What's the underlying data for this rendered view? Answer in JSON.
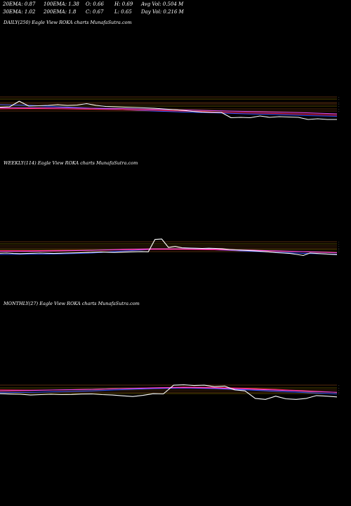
{
  "header": {
    "ema20": "20EMA: 0.87",
    "ema100": "100EMA: 1.38",
    "open": "O: 0.66",
    "high": "H: 0.69",
    "avg_vol": "Avg Vol: 0.504  M",
    "ema30": "30EMA: 1.02",
    "ema200": "200EMA: 1.8",
    "close": "C: 0.67",
    "low": "L: 0.65",
    "day_vol": "Day Vol: 0.216  M"
  },
  "panels": [
    {
      "title": "DAILY(250) Eagle   View  ROKA charts MunafaSutra.com"
    },
    {
      "title": "WEEKLY(114) Eagle   View  ROKA charts MunafaSutra.com"
    },
    {
      "title": "MONTHLY(27) Eagle   View  ROKA charts MunafaSutra.com"
    }
  ],
  "colors": {
    "background": "#000000",
    "price": "#ffffff",
    "ema_blue": "#3355ff",
    "ema_red": "#ff2255",
    "ema_magenta": "#ff55ff",
    "ema_cyan": "#44ddff",
    "level_orange": "#cc6622",
    "level_yellow": "#ccaa00"
  },
  "chart_data": [
    {
      "type": "line",
      "timeframe": "DAILY",
      "bars": 250,
      "price_series": [
        0.85,
        0.86,
        1.02,
        0.88,
        0.89,
        0.9,
        0.92,
        0.9,
        0.91,
        0.95,
        0.9,
        0.87,
        0.86,
        0.85,
        0.84,
        0.83,
        0.82,
        0.8,
        0.78,
        0.76,
        0.73,
        0.71,
        0.7,
        0.7,
        0.55,
        0.56,
        0.55,
        0.6,
        0.56,
        0.58,
        0.57,
        0.56,
        0.5,
        0.52,
        0.5,
        0.5
      ],
      "ema_series": [
        {
          "color": "blue",
          "values": [
            0.92,
            0.9,
            0.86,
            0.82,
            0.78,
            0.74,
            0.71,
            0.69,
            0.66,
            0.64,
            0.61,
            0.59
          ]
        },
        {
          "color": "red",
          "values": [
            0.8,
            0.81,
            0.8,
            0.79,
            0.78,
            0.76,
            0.74,
            0.71,
            0.69,
            0.67,
            0.65,
            0.62
          ]
        },
        {
          "color": "magenta",
          "values": [
            0.83,
            0.83,
            0.83,
            0.82,
            0.81,
            0.79,
            0.77,
            0.75,
            0.73,
            0.71,
            0.69,
            0.66
          ]
        }
      ]
    },
    {
      "type": "line",
      "timeframe": "WEEKLY",
      "bars": 114,
      "price_series": [
        0.71,
        0.72,
        0.7,
        0.69,
        0.7,
        0.71,
        0.72,
        0.71,
        0.7,
        0.71,
        0.72,
        0.73,
        0.74,
        0.75,
        0.76,
        0.77,
        0.76,
        0.75,
        0.76,
        0.77,
        0.78,
        0.79,
        0.78,
        1.4,
        1.42,
        1.0,
        1.05,
        0.98,
        0.97,
        0.96,
        0.95,
        0.96,
        0.95,
        0.93,
        0.9,
        0.88,
        0.86,
        0.84,
        0.82,
        0.8,
        0.77,
        0.74,
        0.72,
        0.7,
        0.65,
        0.6,
        0.72,
        0.7,
        0.68,
        0.66,
        0.64
      ],
      "ema_series": [
        {
          "color": "blue",
          "values": [
            0.65,
            0.66,
            0.68,
            0.72,
            0.82,
            0.9,
            0.92,
            0.88,
            0.82,
            0.76,
            0.7,
            0.66
          ]
        },
        {
          "color": "red",
          "values": [
            0.84,
            0.84,
            0.85,
            0.86,
            0.88,
            0.9,
            0.9,
            0.88,
            0.86,
            0.82,
            0.78,
            0.73
          ]
        },
        {
          "color": "magenta",
          "values": [
            0.8,
            0.81,
            0.83,
            0.86,
            0.9,
            0.93,
            0.93,
            0.91,
            0.87,
            0.83,
            0.79,
            0.74
          ]
        }
      ]
    },
    {
      "type": "line",
      "timeframe": "MONTHLY",
      "bars": 27,
      "price_series": [
        0.85,
        0.83,
        0.82,
        0.78,
        0.8,
        0.82,
        0.8,
        0.81,
        0.83,
        0.84,
        0.8,
        0.78,
        0.74,
        0.7,
        0.76,
        0.85,
        0.84,
        1.3,
        1.32,
        1.28,
        1.3,
        1.22,
        1.25,
        1.05,
        1.0,
        0.6,
        0.55,
        0.72,
        0.58,
        0.55,
        0.6,
        0.75,
        0.72,
        0.68
      ],
      "ema_series": [
        {
          "color": "blue",
          "values": [
            0.9,
            0.92,
            0.96,
            1.0,
            1.06,
            1.12,
            1.15,
            1.12,
            1.05,
            0.98,
            0.9,
            0.84
          ]
        },
        {
          "color": "red",
          "values": [
            1.05,
            1.04,
            1.05,
            1.08,
            1.12,
            1.16,
            1.2,
            1.18,
            1.14,
            1.08,
            1.0,
            0.92
          ]
        },
        {
          "color": "magenta",
          "values": [
            1.0,
            1.02,
            1.05,
            1.08,
            1.12,
            1.15,
            1.17,
            1.15,
            1.1,
            1.04,
            0.98,
            0.92
          ]
        }
      ]
    }
  ]
}
